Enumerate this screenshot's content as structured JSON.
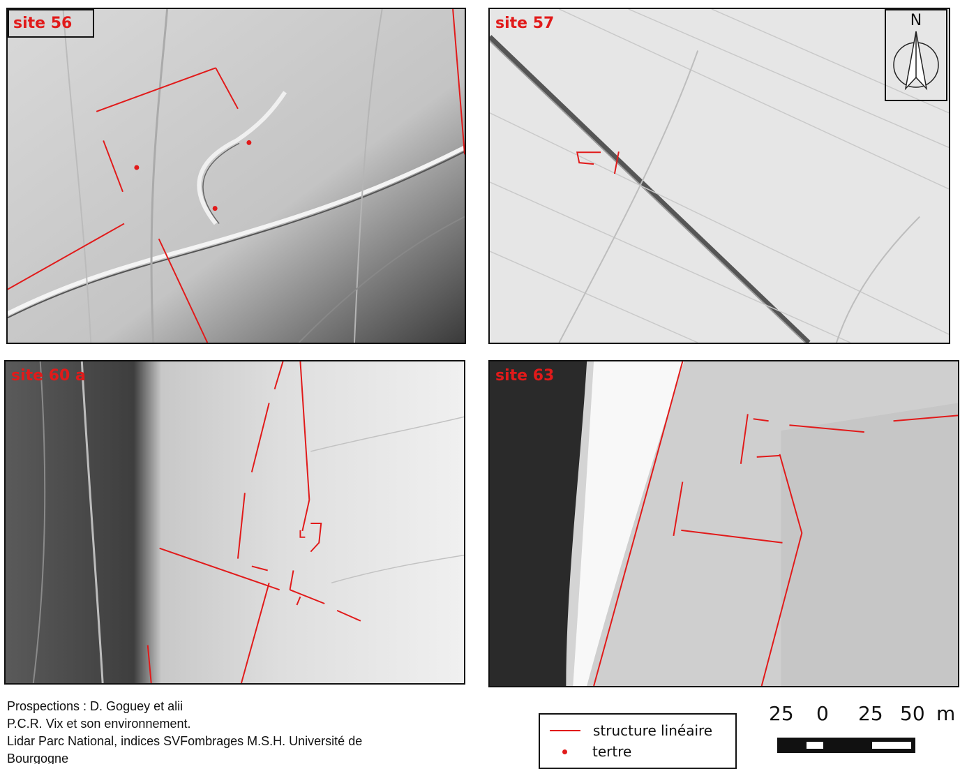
{
  "panels": {
    "site56": {
      "label": "site 56"
    },
    "site57": {
      "label": "site 57"
    },
    "site60a": {
      "label": "site 60 a"
    },
    "site63": {
      "label": "site 63"
    }
  },
  "north_arrow": {
    "label": "N"
  },
  "credits": {
    "line1": "Prospections : D. Goguey et alii",
    "line2": "P.C.R. Vix et son environnement.",
    "line3": "Lidar Parc National, indices SVFombrages M.S.H. Université de",
    "line4": "Bourgogne"
  },
  "legend": {
    "linear": "structure linéaire",
    "mound": "tertre"
  },
  "scale_bar": {
    "ticks": [
      "25",
      "0",
      "25",
      "50"
    ],
    "unit": "m"
  },
  "colors": {
    "structure": "#e11a1a",
    "frame": "#111111"
  }
}
